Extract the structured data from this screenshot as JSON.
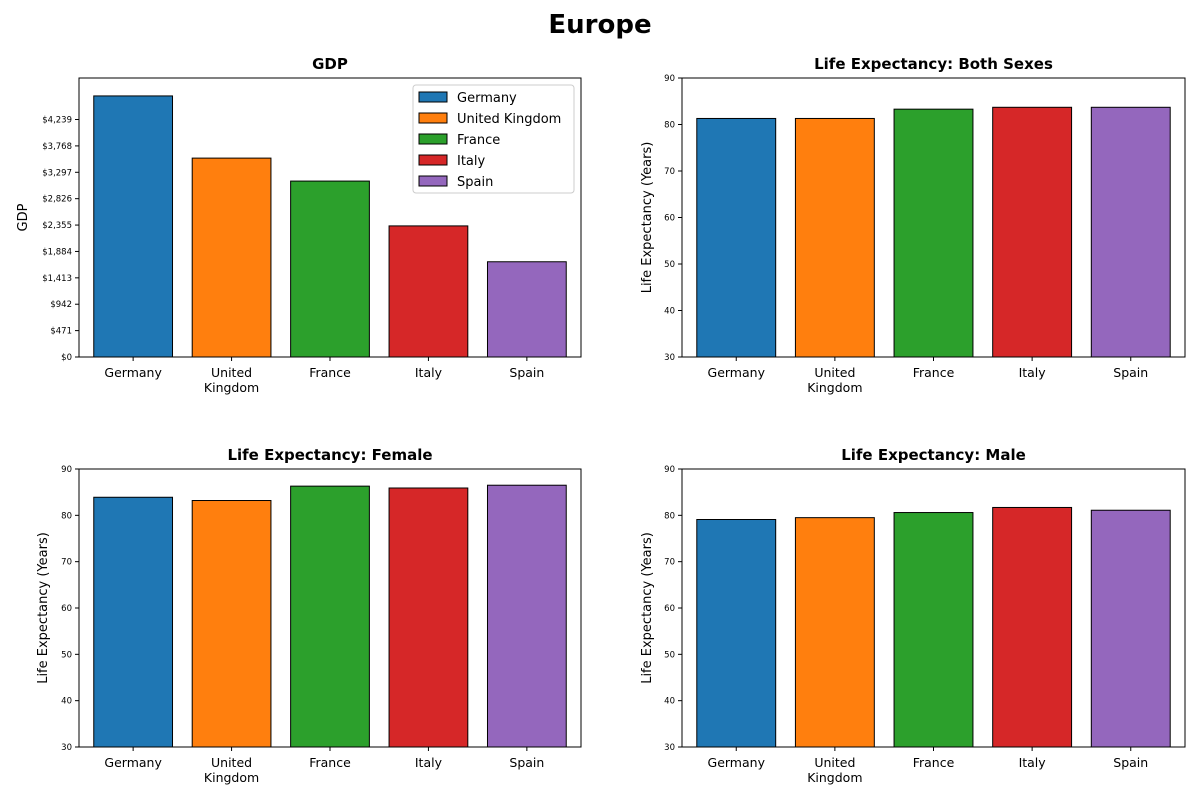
{
  "figure_title": "Europe",
  "colors": {
    "Germany": "#1f77b4",
    "United Kingdom": "#ff7f0e",
    "France": "#2ca02c",
    "Italy": "#d62728",
    "Spain": "#9467bd"
  },
  "chart_data": [
    {
      "type": "bar",
      "title": "GDP",
      "xlabel": "",
      "ylabel": "GDP",
      "categories": [
        "Germany",
        "United Kingdom",
        "France",
        "Italy",
        "Spain"
      ],
      "category_tick_labels": [
        [
          "Germany"
        ],
        [
          "United",
          "Kingdom"
        ],
        [
          "France"
        ],
        [
          "Italy"
        ],
        [
          "Spain"
        ]
      ],
      "values": [
        4660,
        3550,
        3140,
        2340,
        1700
      ],
      "ylim": [
        0,
        4980
      ],
      "yticks": [
        0,
        471,
        942,
        1413,
        1884,
        2355,
        2826,
        3297,
        3768,
        4239
      ],
      "ytick_labels": [
        "$0",
        "$471",
        "$942",
        "$1,413",
        "$1,884",
        "$2,355",
        "$2,826",
        "$3,297",
        "$3,768",
        "$4,239"
      ],
      "legend": {
        "placement": "top-right",
        "entries": [
          "Germany",
          "United Kingdom",
          "France",
          "Italy",
          "Spain"
        ]
      },
      "grid": false
    },
    {
      "type": "bar",
      "title": "Life Expectancy: Both Sexes",
      "xlabel": "",
      "ylabel": "Life Expectancy (Years)",
      "categories": [
        "Germany",
        "United Kingdom",
        "France",
        "Italy",
        "Spain"
      ],
      "category_tick_labels": [
        [
          "Germany"
        ],
        [
          "United",
          "Kingdom"
        ],
        [
          "France"
        ],
        [
          "Italy"
        ],
        [
          "Spain"
        ]
      ],
      "values": [
        81.3,
        81.3,
        83.3,
        83.7,
        83.7
      ],
      "ylim": [
        30,
        90
      ],
      "yticks": [
        30,
        40,
        50,
        60,
        70,
        80,
        90
      ],
      "ytick_labels": [
        "30",
        "40",
        "50",
        "60",
        "70",
        "80",
        "90"
      ],
      "grid": false
    },
    {
      "type": "bar",
      "title": "Life Expectancy: Female",
      "xlabel": "",
      "ylabel": "Life Expectancy (Years)",
      "categories": [
        "Germany",
        "United Kingdom",
        "France",
        "Italy",
        "Spain"
      ],
      "category_tick_labels": [
        [
          "Germany"
        ],
        [
          "United",
          "Kingdom"
        ],
        [
          "France"
        ],
        [
          "Italy"
        ],
        [
          "Spain"
        ]
      ],
      "values": [
        83.9,
        83.2,
        86.3,
        85.9,
        86.5
      ],
      "ylim": [
        30,
        90
      ],
      "yticks": [
        30,
        40,
        50,
        60,
        70,
        80,
        90
      ],
      "ytick_labels": [
        "30",
        "40",
        "50",
        "60",
        "70",
        "80",
        "90"
      ],
      "grid": false
    },
    {
      "type": "bar",
      "title": "Life Expectancy: Male",
      "xlabel": "",
      "ylabel": "Life Expectancy (Years)",
      "categories": [
        "Germany",
        "United Kingdom",
        "France",
        "Italy",
        "Spain"
      ],
      "category_tick_labels": [
        [
          "Germany"
        ],
        [
          "United",
          "Kingdom"
        ],
        [
          "France"
        ],
        [
          "Italy"
        ],
        [
          "Spain"
        ]
      ],
      "values": [
        79.1,
        79.5,
        80.6,
        81.7,
        81.1
      ],
      "ylim": [
        30,
        90
      ],
      "yticks": [
        30,
        40,
        50,
        60,
        70,
        80,
        90
      ],
      "ytick_labels": [
        "30",
        "40",
        "50",
        "60",
        "70",
        "80",
        "90"
      ],
      "grid": false
    }
  ]
}
